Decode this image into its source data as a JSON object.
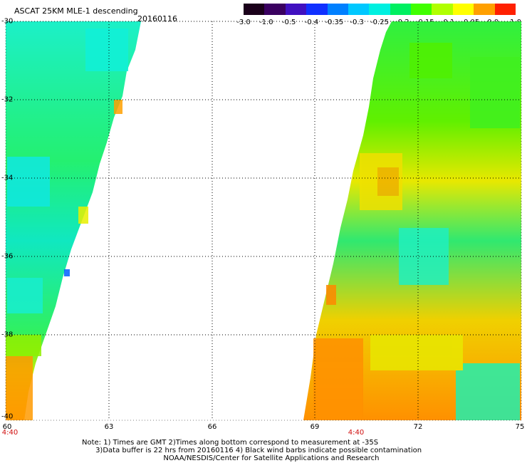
{
  "header": {
    "title": "ASCAT 25KM MLE-1 descending",
    "date": "20160116"
  },
  "colorbar": {
    "labels": [
      "-3.0",
      "-1.0",
      "-0.5",
      "-0.4",
      "-0.35",
      "-0.3",
      "-0.25",
      "-0.2",
      "-0.15",
      "-0.1",
      "-0.05",
      "0.0",
      "1.0"
    ],
    "colors": [
      "#1a001a",
      "#3a0060",
      "#4010c0",
      "#1030ff",
      "#0080ff",
      "#00c8ff",
      "#00f0e0",
      "#00f060",
      "#40ff00",
      "#b0ff00",
      "#ffff00",
      "#ffa000",
      "#ff2000"
    ]
  },
  "axes": {
    "lat_labels": [
      "-30",
      "-32",
      "-34",
      "-36",
      "-38",
      "-40"
    ],
    "lon_labels": [
      "60",
      "63",
      "66",
      "69",
      "72",
      "75"
    ],
    "time_labels": [
      "4:40",
      "4:40"
    ]
  },
  "notes": {
    "line1": "Note: 1) Times are GMT 2)Times along bottom correspond to measurement at -35S",
    "line2": "      3)Data buffer is 22 hrs from 20160116 4) Black wind barbs indicate possible contamination",
    "line3": "                                    NOAA/NESDIS/Center for Satellite Applications and Research"
  },
  "colors": {
    "background": "#ffffff",
    "grid": "#000000",
    "time_label": "#d01010"
  }
}
